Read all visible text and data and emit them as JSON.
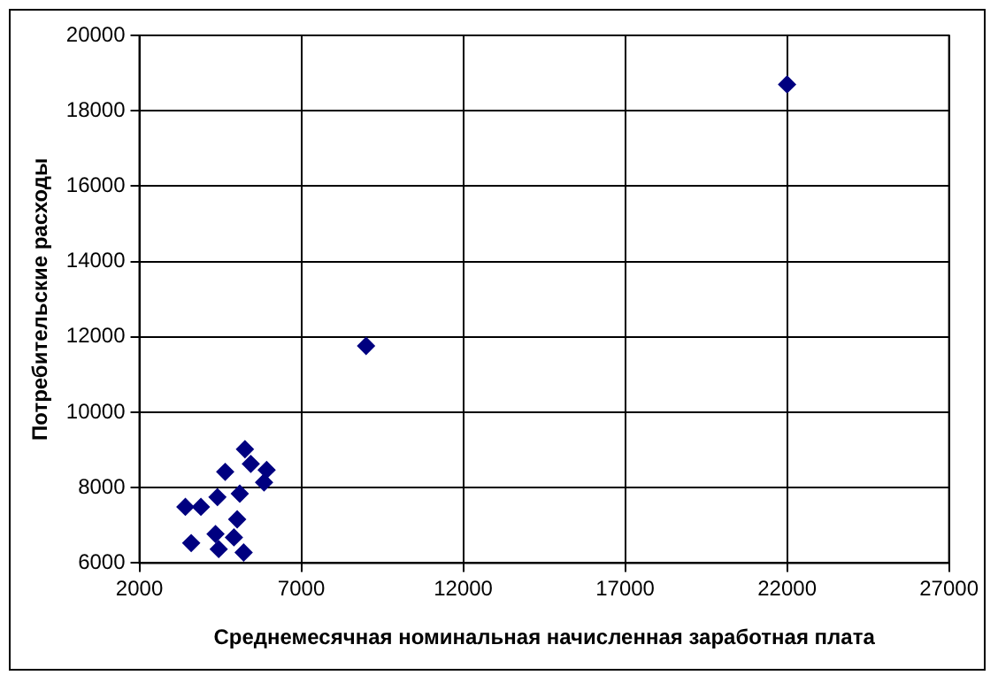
{
  "chart_data": {
    "type": "scatter",
    "xlabel": "Среднемесячная номинальная начисленная заработная плата",
    "ylabel": "Потребительские расходы",
    "x": [
      3420,
      3900,
      3600,
      4410,
      4650,
      5100,
      5260,
      5440,
      5930,
      5850,
      4350,
      4450,
      4920,
      5020,
      5220,
      9000,
      22000
    ],
    "series": [
      {
        "color": "#000080",
        "values": [
          7490,
          7490,
          6530,
          7750,
          8420,
          7840,
          9020,
          8630,
          8470,
          8140,
          6770,
          6370,
          6680,
          7160,
          6280,
          11760,
          18700
        ]
      }
    ],
    "xlim": [
      2000,
      27000
    ],
    "xticks": [
      2000,
      7000,
      12000,
      17000,
      22000,
      27000
    ],
    "ylim": [
      6000,
      20000
    ],
    "yticks": [
      6000,
      8000,
      10000,
      12000,
      14000,
      16000,
      18000,
      20000
    ],
    "grid": true,
    "marker": "diamond",
    "legend": false
  }
}
